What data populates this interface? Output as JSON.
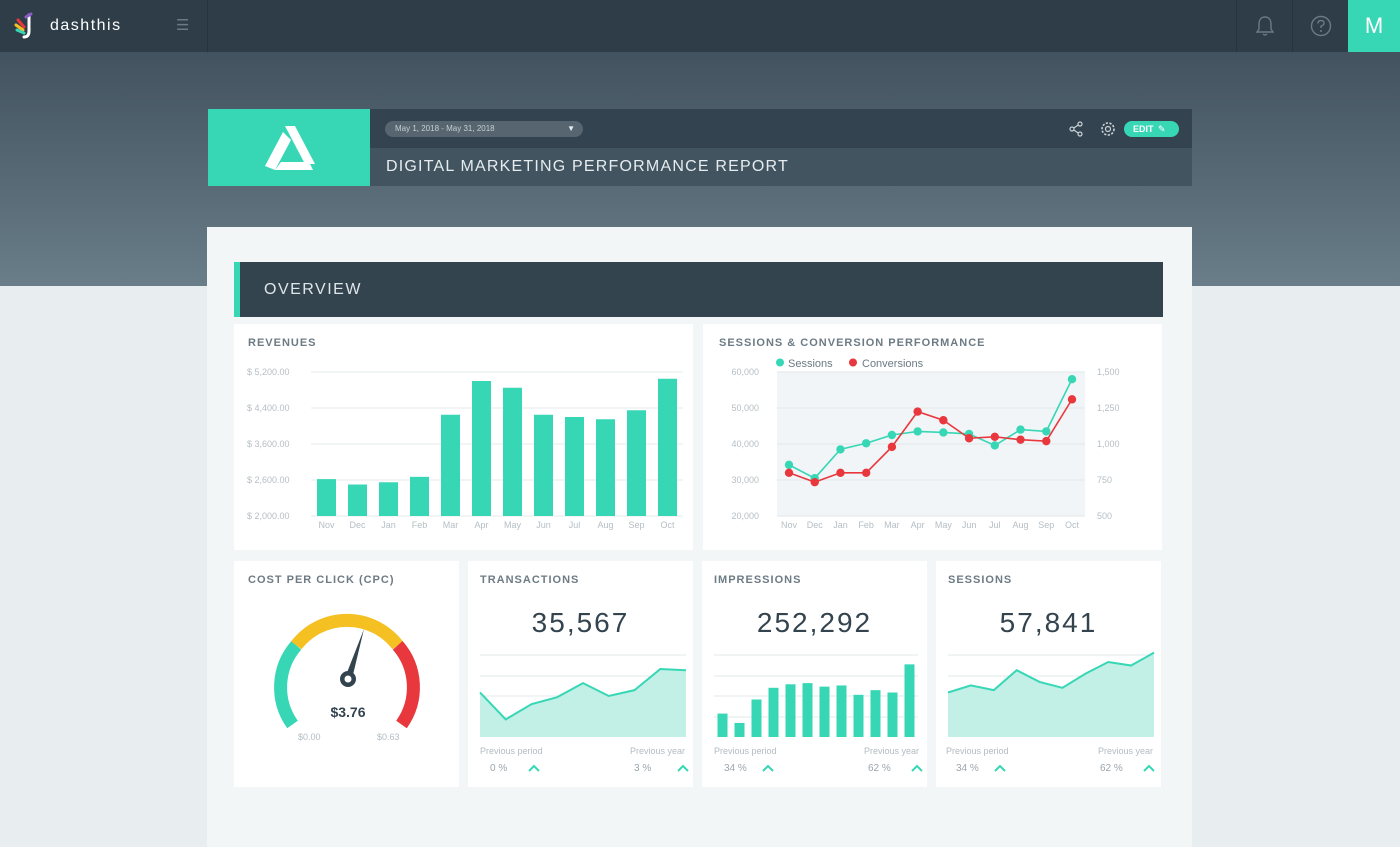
{
  "app": {
    "brand_name": "dashthis",
    "avatar_letter": "M"
  },
  "report": {
    "date_range": "May 1, 2018 - May 31, 2018",
    "title": "DIGITAL MARKETING PERFORMANCE REPORT",
    "edit_label": "EDIT"
  },
  "section": {
    "title": "OVERVIEW"
  },
  "colors": {
    "accent": "#37d7b6",
    "dark": "#34444f",
    "red": "#e8383d",
    "gauge_yellow": "#f4c022"
  },
  "revenues": {
    "title": "REVENUES",
    "chart_data": {
      "type": "bar",
      "categories": [
        "Nov",
        "Dec",
        "Jan",
        "Feb",
        "Mar",
        "Apr",
        "May",
        "Jun",
        "Jul",
        "Aug",
        "Sep",
        "Oct"
      ],
      "values": [
        2820,
        2700,
        2750,
        2870,
        4250,
        5000,
        4850,
        4250,
        4200,
        4150,
        4350,
        5050
      ],
      "yticks": [
        "$ 5,200.00",
        "$ 4,400.00",
        "$ 3,600.00",
        "$ 2,600.00",
        "$ 2,000.00"
      ],
      "ylim": [
        2000,
        5200
      ]
    }
  },
  "sessions_conversions": {
    "title": "SESSIONS & CONVERSION PERFORMANCE",
    "chart_data": {
      "type": "line",
      "categories": [
        "Nov",
        "Dec",
        "Jan",
        "Feb",
        "Mar",
        "Apr",
        "May",
        "Jun",
        "Jul",
        "Aug",
        "Sep",
        "Oct"
      ],
      "series": [
        {
          "name": "Sessions",
          "axis": "left",
          "values": [
            34200,
            30500,
            38500,
            40200,
            42500,
            43500,
            43200,
            42800,
            39600,
            44000,
            43500,
            58000
          ]
        },
        {
          "name": "Conversions",
          "axis": "right",
          "values": [
            800,
            735,
            800,
            800,
            980,
            1225,
            1165,
            1040,
            1050,
            1030,
            1020,
            1310
          ]
        }
      ],
      "yticks_left": [
        "60,000",
        "50,000",
        "40,000",
        "30,000",
        "20,000"
      ],
      "yticks_right": [
        "1,500",
        "1,250",
        "1,000",
        "750",
        "500"
      ],
      "ylim_left": [
        20000,
        60000
      ],
      "ylim_right": [
        500,
        1500
      ],
      "legend": "top-left"
    }
  },
  "cpc": {
    "title": "COST PER CLICK (CPC)",
    "value": "$3.76",
    "min_label": "$0.00",
    "max_label": "$0.63"
  },
  "transactions": {
    "title": "TRANSACTIONS",
    "value": "35,567",
    "prev_period_label": "Previous period",
    "prev_period_value": "0 %",
    "prev_year_label": "Previous year",
    "prev_year_value": "3 %",
    "chart_data": {
      "type": "area",
      "values": [
        38,
        15,
        28,
        34,
        46,
        35,
        40,
        58,
        57
      ]
    }
  },
  "impressions": {
    "title": "IMPRESSIONS",
    "value": "252,292",
    "prev_period_label": "Previous period",
    "prev_period_value": "34 %",
    "prev_year_label": "Previous year",
    "prev_year_value": "62 %",
    "chart_data": {
      "type": "bar",
      "values": [
        20,
        12,
        32,
        42,
        45,
        46,
        43,
        44,
        36,
        40,
        38,
        62
      ]
    }
  },
  "sessions": {
    "title": "SESSIONS",
    "value": "57,841",
    "prev_period_label": "Previous period",
    "prev_period_value": "34 %",
    "prev_year_label": "Previous year",
    "prev_year_value": "62 %",
    "chart_data": {
      "type": "area",
      "values": [
        38,
        44,
        40,
        57,
        47,
        42,
        54,
        64,
        61,
        72
      ]
    }
  }
}
